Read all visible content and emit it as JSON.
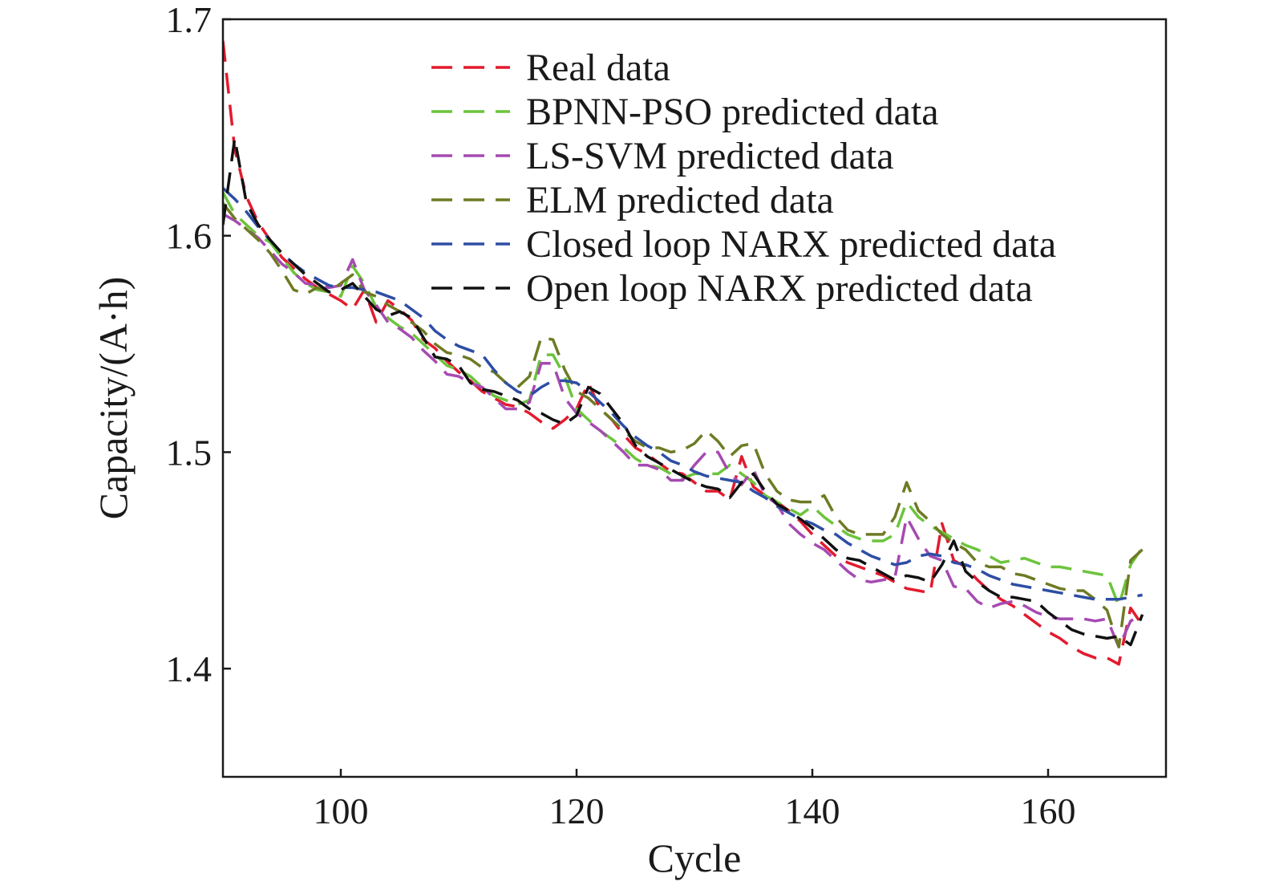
{
  "chart_data": {
    "type": "line",
    "title": "",
    "xlabel": "Cycle",
    "ylabel": "Capacity/(A·h)",
    "xlim": [
      90,
      170
    ],
    "ylim": [
      1.35,
      1.7
    ],
    "xticks": [
      100,
      120,
      140,
      160
    ],
    "yticks": [
      1.4,
      1.5,
      1.6,
      1.7
    ],
    "xtick_labels": [
      "100",
      "120",
      "140",
      "160"
    ],
    "ytick_labels": [
      "1.4",
      "1.5",
      "1.6",
      "1.7"
    ],
    "grid": false,
    "legend_position": "top-right",
    "x": [
      90,
      91,
      92,
      93,
      94,
      95,
      96,
      97,
      98,
      99,
      100,
      101,
      102,
      103,
      104,
      105,
      106,
      107,
      108,
      109,
      110,
      111,
      112,
      113,
      114,
      115,
      116,
      117,
      118,
      119,
      120,
      121,
      122,
      123,
      124,
      125,
      126,
      127,
      128,
      129,
      130,
      131,
      132,
      133,
      134,
      135,
      136,
      137,
      138,
      139,
      140,
      141,
      142,
      143,
      144,
      145,
      146,
      147,
      148,
      149,
      150,
      151,
      152,
      153,
      154,
      155,
      156,
      157,
      158,
      159,
      160,
      161,
      162,
      163,
      164,
      165,
      166,
      167,
      168
    ],
    "series": [
      {
        "name": "Real data",
        "color": "#e31a2e",
        "values": [
          1.69,
          1.64,
          1.618,
          1.606,
          1.598,
          1.59,
          1.585,
          1.58,
          1.576,
          1.573,
          1.57,
          1.566,
          1.575,
          1.56,
          1.57,
          1.566,
          1.561,
          1.552,
          1.548,
          1.542,
          1.537,
          1.533,
          1.528,
          1.525,
          1.522,
          1.521,
          1.518,
          1.514,
          1.511,
          1.515,
          1.52,
          1.532,
          1.52,
          1.515,
          1.508,
          1.502,
          1.499,
          1.495,
          1.491,
          1.49,
          1.486,
          1.482,
          1.482,
          1.478,
          1.498,
          1.484,
          1.48,
          1.477,
          1.473,
          1.468,
          1.462,
          1.457,
          1.452,
          1.449,
          1.447,
          1.445,
          1.443,
          1.44,
          1.437,
          1.436,
          1.435,
          1.467,
          1.45,
          1.447,
          1.441,
          1.436,
          1.432,
          1.429,
          1.425,
          1.421,
          1.417,
          1.414,
          1.41,
          1.407,
          1.405,
          1.405,
          1.402,
          1.428,
          1.42
        ]
      },
      {
        "name": "BPNN-PSO predicted data",
        "color": "#6cc43c",
        "values": [
          1.62,
          1.61,
          1.605,
          1.6,
          1.597,
          1.59,
          1.583,
          1.578,
          1.575,
          1.574,
          1.572,
          1.586,
          1.578,
          1.567,
          1.562,
          1.558,
          1.555,
          1.55,
          1.545,
          1.54,
          1.538,
          1.535,
          1.53,
          1.526,
          1.524,
          1.522,
          1.524,
          1.545,
          1.545,
          1.535,
          1.52,
          1.515,
          1.51,
          1.506,
          1.502,
          1.497,
          1.494,
          1.493,
          1.49,
          1.488,
          1.49,
          1.49,
          1.49,
          1.494,
          1.49,
          1.486,
          1.48,
          1.477,
          1.474,
          1.471,
          1.475,
          1.47,
          1.466,
          1.462,
          1.46,
          1.459,
          1.459,
          1.462,
          1.477,
          1.47,
          1.466,
          1.463,
          1.46,
          1.457,
          1.455,
          1.452,
          1.449,
          1.45,
          1.451,
          1.449,
          1.447,
          1.447,
          1.446,
          1.445,
          1.444,
          1.443,
          1.429,
          1.448,
          1.456
        ]
      },
      {
        "name": "LS-SVM predicted data",
        "color": "#a64ab1",
        "values": [
          1.61,
          1.607,
          1.603,
          1.599,
          1.593,
          1.587,
          1.583,
          1.578,
          1.577,
          1.576,
          1.577,
          1.589,
          1.575,
          1.568,
          1.56,
          1.557,
          1.553,
          1.547,
          1.542,
          1.536,
          1.535,
          1.532,
          1.53,
          1.525,
          1.52,
          1.52,
          1.523,
          1.541,
          1.541,
          1.525,
          1.518,
          1.514,
          1.51,
          1.505,
          1.5,
          1.494,
          1.494,
          1.492,
          1.487,
          1.487,
          1.494,
          1.5,
          1.5,
          1.49,
          1.485,
          1.492,
          1.48,
          1.476,
          1.467,
          1.462,
          1.458,
          1.455,
          1.45,
          1.445,
          1.441,
          1.44,
          1.441,
          1.442,
          1.47,
          1.46,
          1.452,
          1.45,
          1.438,
          1.437,
          1.431,
          1.428,
          1.43,
          1.431,
          1.429,
          1.426,
          1.424,
          1.423,
          1.423,
          1.423,
          1.422,
          1.423,
          1.41,
          1.422,
          1.425
        ]
      },
      {
        "name": "ELM predicted data",
        "color": "#6f7a24",
        "values": [
          1.615,
          1.608,
          1.603,
          1.598,
          1.592,
          1.584,
          1.575,
          1.573,
          1.576,
          1.574,
          1.578,
          1.582,
          1.574,
          1.572,
          1.568,
          1.565,
          1.56,
          1.556,
          1.55,
          1.546,
          1.545,
          1.543,
          1.539,
          1.537,
          1.532,
          1.53,
          1.535,
          1.553,
          1.552,
          1.538,
          1.528,
          1.525,
          1.52,
          1.515,
          1.51,
          1.505,
          1.502,
          1.502,
          1.5,
          1.501,
          1.504,
          1.51,
          1.505,
          1.498,
          1.503,
          1.504,
          1.49,
          1.482,
          1.478,
          1.477,
          1.477,
          1.48,
          1.47,
          1.464,
          1.462,
          1.462,
          1.462,
          1.47,
          1.486,
          1.473,
          1.468,
          1.462,
          1.458,
          1.455,
          1.449,
          1.447,
          1.447,
          1.444,
          1.443,
          1.441,
          1.439,
          1.437,
          1.436,
          1.436,
          1.432,
          1.427,
          1.41,
          1.45,
          1.455
        ]
      },
      {
        "name": "Closed loop NARX predicted data",
        "color": "#2e4ea4",
        "values": [
          1.622,
          1.617,
          1.611,
          1.604,
          1.598,
          1.592,
          1.587,
          1.583,
          1.58,
          1.577,
          1.576,
          1.576,
          1.575,
          1.574,
          1.572,
          1.57,
          1.566,
          1.562,
          1.556,
          1.552,
          1.549,
          1.547,
          1.545,
          1.538,
          1.532,
          1.528,
          1.526,
          1.53,
          1.533,
          1.533,
          1.532,
          1.528,
          1.523,
          1.518,
          1.512,
          1.507,
          1.503,
          1.5,
          1.496,
          1.494,
          1.491,
          1.489,
          1.488,
          1.487,
          1.486,
          1.482,
          1.479,
          1.475,
          1.472,
          1.469,
          1.467,
          1.464,
          1.462,
          1.458,
          1.455,
          1.452,
          1.45,
          1.448,
          1.449,
          1.452,
          1.453,
          1.452,
          1.449,
          1.448,
          1.446,
          1.443,
          1.441,
          1.439,
          1.438,
          1.437,
          1.436,
          1.435,
          1.434,
          1.433,
          1.432,
          1.432,
          1.432,
          1.433,
          1.434
        ]
      },
      {
        "name": "Open loop NARX predicted data",
        "color": "#111111",
        "values": [
          1.605,
          1.645,
          1.615,
          1.605,
          1.598,
          1.592,
          1.587,
          1.582,
          1.578,
          1.574,
          1.575,
          1.578,
          1.572,
          1.566,
          1.563,
          1.565,
          1.562,
          1.553,
          1.544,
          1.543,
          1.54,
          1.532,
          1.529,
          1.528,
          1.526,
          1.524,
          1.52,
          1.518,
          1.515,
          1.513,
          1.517,
          1.53,
          1.527,
          1.52,
          1.513,
          1.503,
          1.498,
          1.495,
          1.492,
          1.489,
          1.486,
          1.484,
          1.483,
          1.479,
          1.486,
          1.49,
          1.482,
          1.476,
          1.473,
          1.469,
          1.465,
          1.46,
          1.455,
          1.451,
          1.45,
          1.447,
          1.444,
          1.441,
          1.443,
          1.442,
          1.44,
          1.448,
          1.459,
          1.445,
          1.44,
          1.436,
          1.433,
          1.433,
          1.432,
          1.431,
          1.426,
          1.422,
          1.418,
          1.416,
          1.415,
          1.414,
          1.415,
          1.411,
          1.425
        ]
      }
    ]
  }
}
